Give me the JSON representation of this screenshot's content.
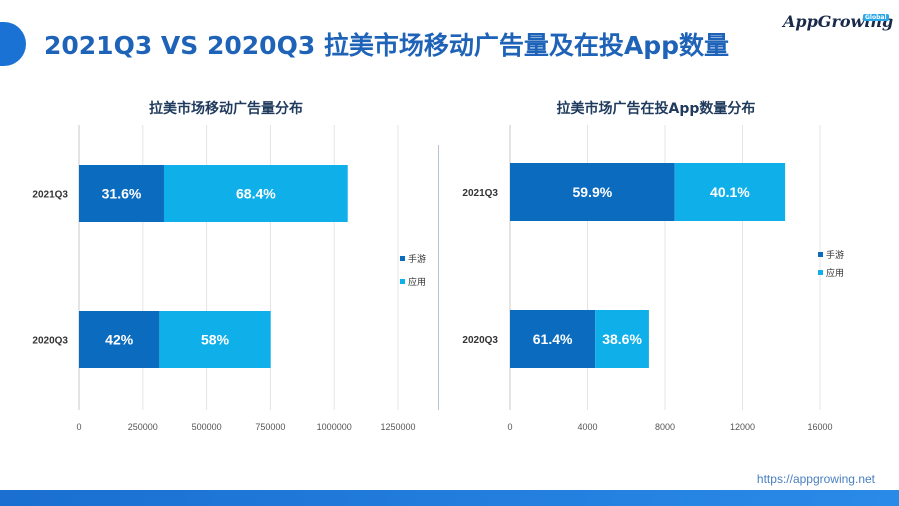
{
  "header": {
    "title": "2021Q3 VS 2020Q3 拉美市场移动广告量及在投App数量",
    "logo_text": "AppGrowing",
    "logo_badge": "Global"
  },
  "footer": {
    "url": "https://appgrowing.net"
  },
  "colors": {
    "accent": "#1a73d4",
    "series_game": "#0b6bbf",
    "series_app": "#0fb0ea",
    "title": "#1e63b8"
  },
  "chart_data": [
    {
      "type": "bar",
      "orientation": "horizontal",
      "stacked": true,
      "title": "拉美市场移动广告量分布",
      "categories": [
        "2021Q3",
        "2020Q3"
      ],
      "series": [
        {
          "name": "手游",
          "values": [
            333000,
            315000
          ],
          "labels": [
            "31.6%",
            "42%"
          ]
        },
        {
          "name": "应用",
          "values": [
            720000,
            436000
          ],
          "labels": [
            "68.4%",
            "58%"
          ]
        }
      ],
      "xlim": [
        0,
        1375000
      ],
      "xticks": [
        0,
        250000,
        500000,
        750000,
        1000000,
        1250000
      ],
      "grid": true,
      "legend": "right"
    },
    {
      "type": "bar",
      "orientation": "horizontal",
      "stacked": true,
      "title": "拉美市场广告在投App数量分布",
      "categories": [
        "2021Q3",
        "2020Q3"
      ],
      "series": [
        {
          "name": "手游",
          "values": [
            8500,
            4400
          ],
          "labels": [
            "59.9%",
            "61.4%"
          ]
        },
        {
          "name": "应用",
          "values": [
            5700,
            2770
          ],
          "labels": [
            "40.1%",
            "38.6%"
          ]
        }
      ],
      "xlim": [
        0,
        17000
      ],
      "xticks": [
        0,
        4000,
        8000,
        12000,
        16000
      ],
      "grid": true,
      "legend": "right"
    }
  ]
}
